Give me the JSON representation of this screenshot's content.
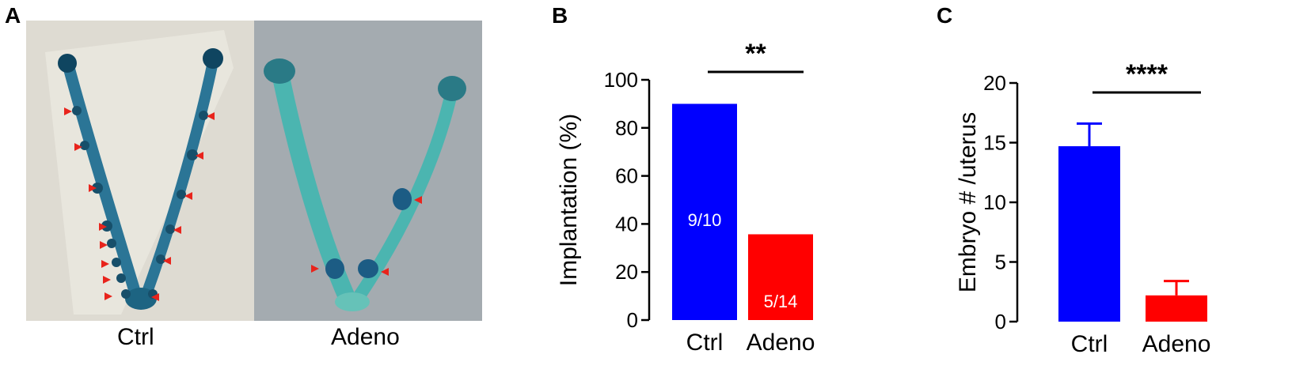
{
  "panels": {
    "a_letter": "A",
    "b_letter": "B",
    "c_letter": "C"
  },
  "photos": [
    {
      "label": "Ctrl",
      "background": "#dedbd2"
    },
    {
      "label": "Adeno",
      "background": "#a4abb0"
    }
  ],
  "colors": {
    "ctrl": "#0000ff",
    "adeno": "#ff0000",
    "arrow": "#e8241c",
    "tissue": "#1f7f9a"
  },
  "chart_data": [
    {
      "type": "bar",
      "categories": [
        "Ctrl",
        "Adeno"
      ],
      "values": [
        90,
        35.7
      ],
      "bar_labels": [
        "9/10",
        "5/14"
      ],
      "ylabel": "Implantation (%)",
      "ylim": [
        0,
        100
      ],
      "yticks": [
        0,
        20,
        40,
        60,
        80,
        100
      ],
      "significance": "**"
    },
    {
      "type": "bar",
      "categories": [
        "Ctrl",
        "Adeno"
      ],
      "values": [
        14.7,
        2.2
      ],
      "errors": [
        1.9,
        1.2
      ],
      "ylabel": "Embryo # /uterus",
      "ylim": [
        0,
        20
      ],
      "yticks": [
        0,
        5,
        10,
        15,
        20
      ],
      "significance": "****"
    }
  ]
}
